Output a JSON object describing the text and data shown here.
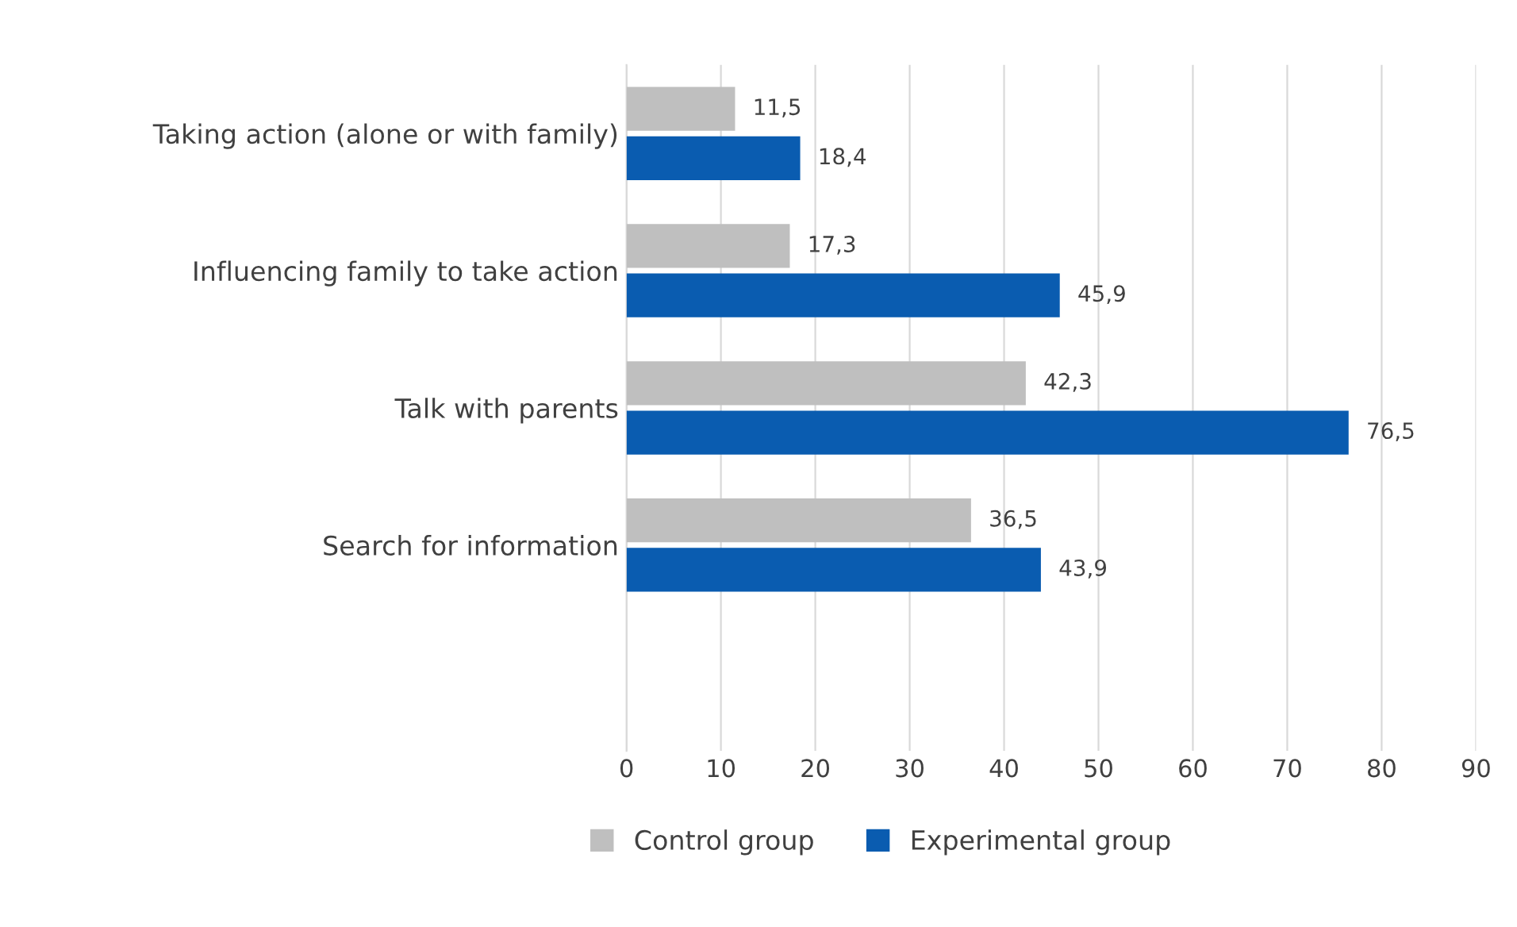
{
  "chart_data": {
    "type": "bar",
    "orientation": "horizontal",
    "categories": [
      "Taking action (alone or with family)",
      "Influencing family to take action",
      "Talk with parents",
      "Search for information",
      null
    ],
    "series": [
      {
        "name": "Control group",
        "color": "#bfbfbf",
        "values": [
          11.5,
          17.3,
          42.3,
          36.5,
          null
        ],
        "value_labels": [
          "11,5",
          "17,3",
          "42,3",
          "36,5",
          null
        ]
      },
      {
        "name": "Experimental group",
        "color": "#0a5cb0",
        "values": [
          18.4,
          45.9,
          76.5,
          43.9,
          null
        ],
        "value_labels": [
          "18,4",
          "45,9",
          "76,5",
          "43,9",
          null
        ]
      }
    ],
    "xlim": [
      0,
      90
    ],
    "xticks": [
      0,
      10,
      20,
      30,
      40,
      50,
      60,
      70,
      80,
      90
    ],
    "grid": "x",
    "legend": "bottom"
  }
}
